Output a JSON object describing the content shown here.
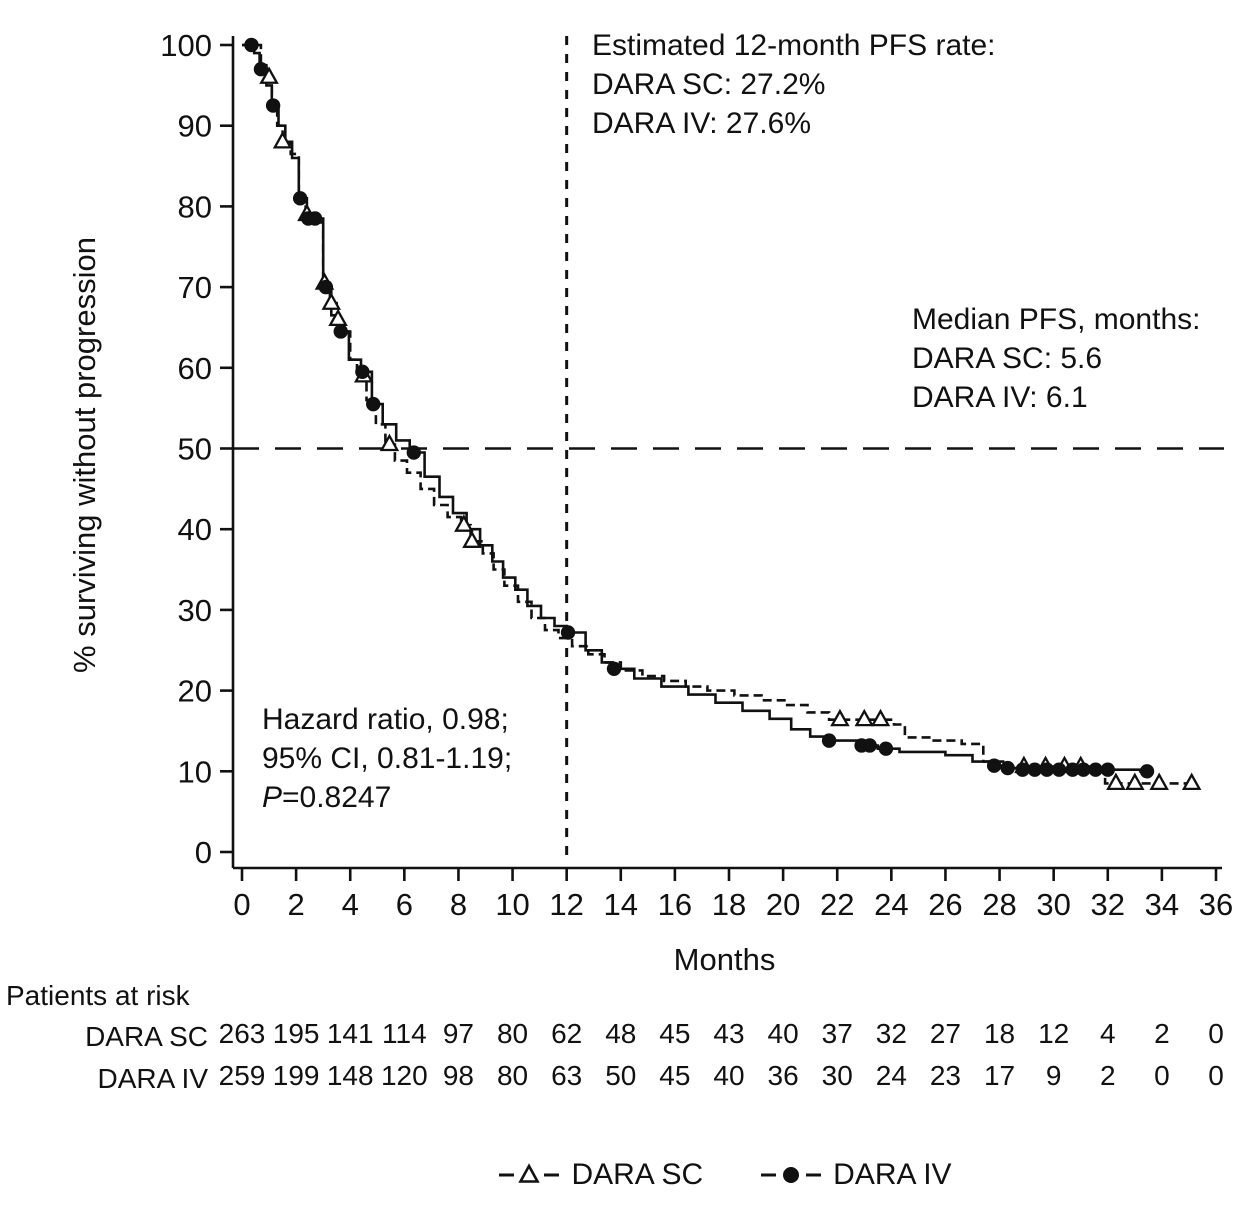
{
  "chart_data": {
    "type": "line",
    "subtype": "kaplan-meier-step",
    "xlabel": "Months",
    "ylabel": "% surviving without progression",
    "xlim": [
      0,
      36
    ],
    "ylim": [
      0,
      100
    ],
    "x_ticks": [
      0,
      2,
      4,
      6,
      8,
      10,
      12,
      14,
      16,
      18,
      20,
      22,
      24,
      26,
      28,
      30,
      32,
      34,
      36
    ],
    "y_ticks": [
      0,
      10,
      20,
      30,
      40,
      50,
      60,
      70,
      80,
      90,
      100
    ],
    "grid": false,
    "legend_position": "bottom",
    "reference_lines": {
      "horizontal_y": 50,
      "vertical_x": 12
    },
    "series": [
      {
        "name": "DARA SC",
        "style": "dashed",
        "marker": "open-triangle",
        "steps": [
          [
            0,
            100
          ],
          [
            0.7,
            97.5
          ],
          [
            0.9,
            96
          ],
          [
            1.1,
            92
          ],
          [
            1.3,
            90
          ],
          [
            1.5,
            88
          ],
          [
            1.8,
            86.5
          ],
          [
            2.1,
            81
          ],
          [
            2.35,
            79
          ],
          [
            2.6,
            78
          ],
          [
            3.0,
            70.5
          ],
          [
            3.25,
            68
          ],
          [
            3.5,
            66
          ],
          [
            3.75,
            64.5
          ],
          [
            4.0,
            61
          ],
          [
            4.25,
            59
          ],
          [
            4.6,
            56
          ],
          [
            4.95,
            53
          ],
          [
            5.3,
            50.5
          ],
          [
            5.65,
            48.5
          ],
          [
            6.1,
            47
          ],
          [
            6.6,
            45
          ],
          [
            7.1,
            43
          ],
          [
            7.6,
            41.5
          ],
          [
            8.1,
            40.5
          ],
          [
            8.45,
            38.5
          ],
          [
            8.9,
            37
          ],
          [
            9.3,
            35
          ],
          [
            9.7,
            33
          ],
          [
            10.2,
            31
          ],
          [
            10.7,
            29
          ],
          [
            11.2,
            27.5
          ],
          [
            11.7,
            26.5
          ],
          [
            12.2,
            25.5
          ],
          [
            12.8,
            24.5
          ],
          [
            13.4,
            23.5
          ],
          [
            14.0,
            22.5
          ],
          [
            14.8,
            21.8
          ],
          [
            15.6,
            21.2
          ],
          [
            16.4,
            20.5
          ],
          [
            17.2,
            20
          ],
          [
            18.2,
            19.4
          ],
          [
            19.2,
            18.8
          ],
          [
            20.1,
            18.2
          ],
          [
            20.9,
            17.3
          ],
          [
            21.7,
            16.4
          ],
          [
            24.1,
            15.8
          ],
          [
            24.5,
            14.2
          ],
          [
            25.5,
            13.8
          ],
          [
            26.6,
            13.4
          ],
          [
            27.4,
            11.2
          ],
          [
            28.3,
            10.6
          ],
          [
            31.9,
            8.5
          ],
          [
            35.2,
            8.5
          ]
        ],
        "censor_marks": [
          [
            1.0,
            96
          ],
          [
            1.5,
            88
          ],
          [
            2.4,
            79
          ],
          [
            3.05,
            70.5
          ],
          [
            3.3,
            68
          ],
          [
            3.55,
            66
          ],
          [
            4.5,
            59
          ],
          [
            5.45,
            50.5
          ],
          [
            8.2,
            40.5
          ],
          [
            8.5,
            38.5
          ],
          [
            22.1,
            16.4
          ],
          [
            23.0,
            16.4
          ],
          [
            23.6,
            16.4
          ],
          [
            28.9,
            10.6
          ],
          [
            29.7,
            10.6
          ],
          [
            30.4,
            10.6
          ],
          [
            31.0,
            10.6
          ],
          [
            32.3,
            8.5
          ],
          [
            33.0,
            8.5
          ],
          [
            33.9,
            8.5
          ],
          [
            35.1,
            8.5
          ]
        ],
        "estimated_12_month_pfs_rate": "27.2%",
        "median_pfs_months": "5.6"
      },
      {
        "name": "DARA IV",
        "style": "solid",
        "marker": "filled-circle",
        "steps": [
          [
            0,
            100
          ],
          [
            0.45,
            99
          ],
          [
            0.65,
            97
          ],
          [
            0.9,
            95
          ],
          [
            1.1,
            92.5
          ],
          [
            1.35,
            90
          ],
          [
            1.6,
            88
          ],
          [
            1.85,
            86
          ],
          [
            2.1,
            81
          ],
          [
            2.4,
            78.5
          ],
          [
            3.0,
            70
          ],
          [
            3.3,
            66.5
          ],
          [
            3.6,
            64.5
          ],
          [
            3.95,
            61
          ],
          [
            4.4,
            59.5
          ],
          [
            4.8,
            55.5
          ],
          [
            5.2,
            53
          ],
          [
            5.7,
            51
          ],
          [
            6.2,
            49.5
          ],
          [
            6.75,
            46.5
          ],
          [
            7.3,
            44
          ],
          [
            7.8,
            42
          ],
          [
            8.3,
            40
          ],
          [
            8.8,
            38
          ],
          [
            9.25,
            36
          ],
          [
            9.65,
            34
          ],
          [
            10.1,
            32.5
          ],
          [
            10.55,
            30.5
          ],
          [
            11.05,
            29
          ],
          [
            11.55,
            28
          ],
          [
            12.0,
            27.2
          ],
          [
            12.7,
            25
          ],
          [
            13.3,
            23.5
          ],
          [
            13.7,
            22.7
          ],
          [
            14.5,
            21.5
          ],
          [
            15.5,
            20.5
          ],
          [
            16.5,
            19.5
          ],
          [
            17.5,
            18.5
          ],
          [
            18.5,
            17.5
          ],
          [
            19.5,
            16.5
          ],
          [
            20.3,
            15.2
          ],
          [
            21.0,
            14.3
          ],
          [
            21.6,
            13.8
          ],
          [
            22.8,
            13.2
          ],
          [
            23.5,
            12.8
          ],
          [
            24.3,
            12.4
          ],
          [
            26.0,
            12
          ],
          [
            27.0,
            11.2
          ],
          [
            27.6,
            10.7
          ],
          [
            28.1,
            10.4
          ],
          [
            28.8,
            10.2
          ],
          [
            33.2,
            10
          ],
          [
            33.7,
            10
          ]
        ],
        "censor_marks": [
          [
            0.35,
            100
          ],
          [
            0.7,
            97
          ],
          [
            1.15,
            92.5
          ],
          [
            2.15,
            81
          ],
          [
            2.45,
            78.5
          ],
          [
            2.7,
            78.5
          ],
          [
            3.1,
            70
          ],
          [
            3.65,
            64.5
          ],
          [
            4.45,
            59.5
          ],
          [
            4.85,
            55.5
          ],
          [
            6.35,
            49.5
          ],
          [
            12.05,
            27.2
          ],
          [
            13.75,
            22.7
          ],
          [
            21.7,
            13.8
          ],
          [
            22.9,
            13.2
          ],
          [
            23.2,
            13.2
          ],
          [
            23.8,
            12.8
          ],
          [
            27.8,
            10.7
          ],
          [
            28.3,
            10.4
          ],
          [
            28.85,
            10.2
          ],
          [
            29.3,
            10.2
          ],
          [
            29.75,
            10.2
          ],
          [
            30.2,
            10.2
          ],
          [
            30.7,
            10.2
          ],
          [
            31.1,
            10.2
          ],
          [
            31.55,
            10.2
          ],
          [
            32.0,
            10.2
          ],
          [
            33.45,
            10
          ]
        ],
        "estimated_12_month_pfs_rate": "27.6%",
        "median_pfs_months": "6.1"
      }
    ]
  },
  "annotations": {
    "pfs_rate": {
      "lines": [
        "Estimated 12-month PFS rate:",
        "DARA SC: 27.2%",
        "DARA IV: 27.6%"
      ]
    },
    "median": {
      "lines": [
        "Median PFS, months:",
        "DARA SC: 5.6",
        "DARA IV: 6.1"
      ]
    },
    "stats": {
      "lines": [
        "Hazard ratio, 0.98;",
        "95% CI, 0.81-1.19;"
      ],
      "p_label": "P",
      "p_rest": "=0.8247"
    }
  },
  "risk_table": {
    "title": "Patients at risk",
    "rows": [
      {
        "label": "DARA SC",
        "values": [
          263,
          195,
          141,
          114,
          97,
          80,
          62,
          48,
          45,
          43,
          40,
          37,
          32,
          27,
          18,
          12,
          4,
          2,
          0
        ]
      },
      {
        "label": "DARA IV",
        "values": [
          259,
          199,
          148,
          120,
          98,
          80,
          63,
          50,
          45,
          40,
          36,
          30,
          24,
          23,
          17,
          9,
          2,
          0,
          0
        ]
      }
    ]
  },
  "legend": [
    {
      "label": "DARA SC",
      "marker": "open-triangle-dashed"
    },
    {
      "label": "DARA IV",
      "marker": "filled-circle-solid"
    }
  ],
  "colors": {
    "curve": "#111111",
    "background": "#ffffff",
    "marker_fill": "#111111",
    "marker_open_fill": "#ffffff"
  }
}
